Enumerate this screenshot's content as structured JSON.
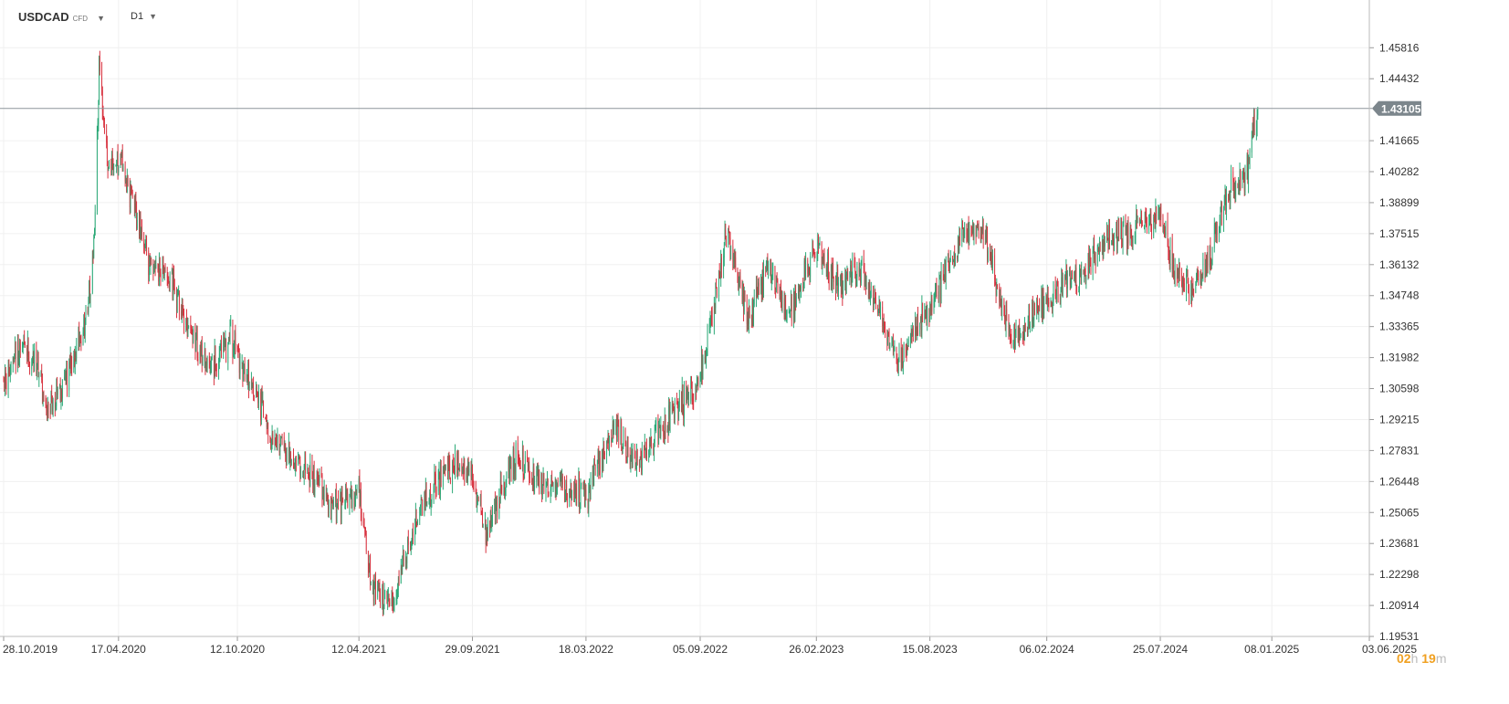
{
  "toolbar": {
    "symbol": "USDCAD",
    "instrument_type": "CFD",
    "timeframe": "D1",
    "dropdown_icon": "caret-down-icon"
  },
  "timer": {
    "hours": "02",
    "hours_unit": "h",
    "minutes": "19",
    "minutes_unit": "m"
  },
  "colors": {
    "up": "#2aa876",
    "down": "#d8323f",
    "price_line": "#8e969c",
    "grid": "#f0f0f0",
    "axis_text": "#333333"
  },
  "chart_data": {
    "type": "candlestick",
    "title": "USDCAD",
    "xlabel": "",
    "ylabel": "",
    "grid": true,
    "x_range": [
      "28.10.2019",
      "03.06.2025"
    ],
    "y_range": [
      1.19531,
      1.4705
    ],
    "y_ticks": [
      "1.45816",
      "1.44432",
      "1.41665",
      "1.40282",
      "1.38899",
      "1.37515",
      "1.36132",
      "1.34748",
      "1.33365",
      "1.31982",
      "1.30598",
      "1.29215",
      "1.27831",
      "1.26448",
      "1.25065",
      "1.23681",
      "1.22298",
      "1.20914",
      "1.19531"
    ],
    "x_ticks": [
      "28.10.2019",
      "17.04.2020",
      "12.10.2020",
      "12.04.2021",
      "29.09.2021",
      "18.03.2022",
      "05.09.2022",
      "26.02.2023",
      "15.08.2023",
      "06.02.2024",
      "25.07.2024",
      "08.01.2025",
      "03.06.2025"
    ],
    "current_price": "1.43105",
    "series": [
      {
        "date": "28.10.2019",
        "value": 1.311
      },
      {
        "date": "25.11.2019",
        "value": 1.328
      },
      {
        "date": "20.12.2019",
        "value": 1.315
      },
      {
        "date": "01.01.2020",
        "value": 1.297
      },
      {
        "date": "20.01.2020",
        "value": 1.304
      },
      {
        "date": "15.02.2020",
        "value": 1.323
      },
      {
        "date": "01.03.2020",
        "value": 1.339
      },
      {
        "date": "12.03.2020",
        "value": 1.374
      },
      {
        "date": "19.03.2020",
        "value": 1.451
      },
      {
        "date": "01.04.2020",
        "value": 1.402
      },
      {
        "date": "17.04.2020",
        "value": 1.408
      },
      {
        "date": "01.05.2020",
        "value": 1.397
      },
      {
        "date": "01.06.2020",
        "value": 1.362
      },
      {
        "date": "01.07.2020",
        "value": 1.357
      },
      {
        "date": "01.08.2020",
        "value": 1.331
      },
      {
        "date": "01.09.2020",
        "value": 1.315
      },
      {
        "date": "01.10.2020",
        "value": 1.328
      },
      {
        "date": "15.11.2020",
        "value": 1.3
      },
      {
        "date": "01.12.2020",
        "value": 1.285
      },
      {
        "date": "01.01.2021",
        "value": 1.276
      },
      {
        "date": "01.02.2021",
        "value": 1.267
      },
      {
        "date": "01.03.2021",
        "value": 1.254
      },
      {
        "date": "12.04.2021",
        "value": 1.259
      },
      {
        "date": "01.05.2021",
        "value": 1.22
      },
      {
        "date": "01.06.2021",
        "value": 1.208
      },
      {
        "date": "01.07.2021",
        "value": 1.245
      },
      {
        "date": "20.08.2021",
        "value": 1.271
      },
      {
        "date": "29.09.2021",
        "value": 1.268
      },
      {
        "date": "20.10.2021",
        "value": 1.24
      },
      {
        "date": "01.12.2021",
        "value": 1.277
      },
      {
        "date": "01.01.2022",
        "value": 1.265
      },
      {
        "date": "18.03.2022",
        "value": 1.258
      },
      {
        "date": "01.05.2022",
        "value": 1.289
      },
      {
        "date": "01.06.2022",
        "value": 1.272
      },
      {
        "date": "01.07.2022",
        "value": 1.285
      },
      {
        "date": "05.09.2022",
        "value": 1.31
      },
      {
        "date": "15.10.2022",
        "value": 1.378
      },
      {
        "date": "15.11.2022",
        "value": 1.338
      },
      {
        "date": "15.12.2022",
        "value": 1.362
      },
      {
        "date": "15.01.2023",
        "value": 1.338
      },
      {
        "date": "26.02.2023",
        "value": 1.372
      },
      {
        "date": "01.04.2023",
        "value": 1.35
      },
      {
        "date": "01.05.2023",
        "value": 1.361
      },
      {
        "date": "15.06.2023",
        "value": 1.328
      },
      {
        "date": "01.07.2023",
        "value": 1.318
      },
      {
        "date": "15.08.2023",
        "value": 1.343
      },
      {
        "date": "01.10.2023",
        "value": 1.374
      },
      {
        "date": "01.11.2023",
        "value": 1.378
      },
      {
        "date": "15.12.2023",
        "value": 1.326
      },
      {
        "date": "06.02.2024",
        "value": 1.345
      },
      {
        "date": "01.04.2024",
        "value": 1.359
      },
      {
        "date": "01.05.2024",
        "value": 1.37
      },
      {
        "date": "25.07.2024",
        "value": 1.385
      },
      {
        "date": "15.08.2024",
        "value": 1.358
      },
      {
        "date": "01.09.2024",
        "value": 1.352
      },
      {
        "date": "01.10.2024",
        "value": 1.359
      },
      {
        "date": "01.11.2024",
        "value": 1.392
      },
      {
        "date": "01.12.2024",
        "value": 1.402
      },
      {
        "date": "18.12.2024",
        "value": 1.431
      }
    ]
  }
}
